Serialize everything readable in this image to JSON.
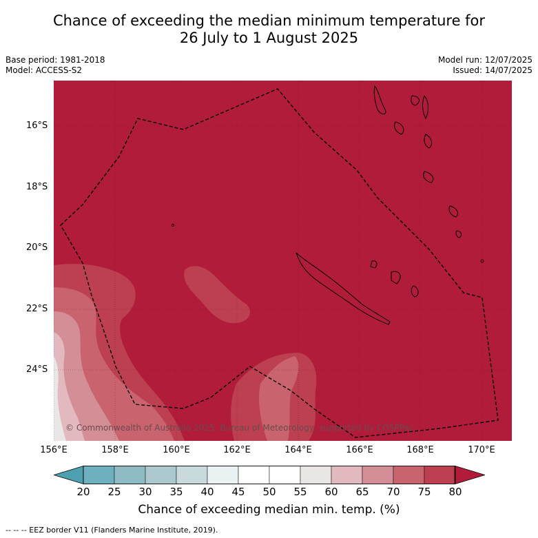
{
  "title_line1": "Chance of exceeding the median minimum temperature for",
  "title_line2": "26 July to 1 August 2025",
  "meta_left": {
    "base_period": "Base period: 1981-2018",
    "model": "Model: ACCESS-S2"
  },
  "meta_right": {
    "model_run": "Model run: 12/07/2025",
    "issued": "Issued: 14/07/2025"
  },
  "lat_labels": [
    "16°S",
    "18°S",
    "20°S",
    "22°S",
    "24°S"
  ],
  "lon_labels": [
    "156°E",
    "158°E",
    "160°E",
    "162°E",
    "164°E",
    "166°E",
    "168°E",
    "170°E"
  ],
  "copyright": "© Commonwealth of Australia 2025, Bureau of Meteorology, supported by COSPPac",
  "colorbar": {
    "ticks": [
      "20",
      "25",
      "30",
      "35",
      "40",
      "45",
      "50",
      "55",
      "60",
      "65",
      "70",
      "75",
      "80"
    ],
    "colors": [
      "#4ea0b0",
      "#6eb0bd",
      "#8fbbc5",
      "#aac8cd",
      "#c8dadc",
      "#eaf1f3",
      "#ffffff",
      "#ffffff",
      "#eae6e6",
      "#e2b9be",
      "#d48e96",
      "#c9646f",
      "#bc404f",
      "#b01c3a"
    ],
    "title": "Chance of exceeding median min. temp. (%)"
  },
  "footnote": "--  --  -- EEZ border V11 (Flanders Marine Institute, 2019).",
  "colors": {
    "dominant": "#b01c3a"
  }
}
